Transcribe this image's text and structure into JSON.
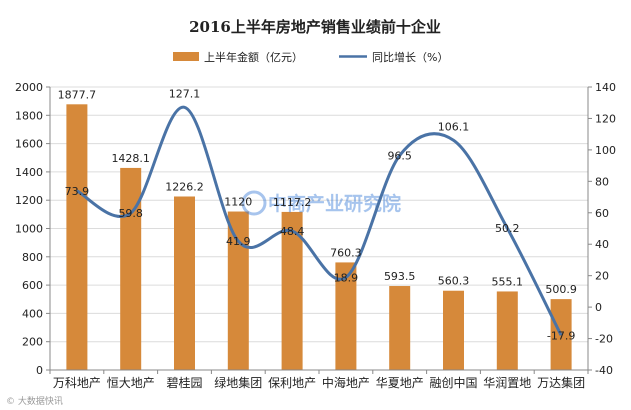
{
  "chart_data": {
    "type": "bar+line",
    "title": "2016上半年房地产销售业绩前十企业",
    "categories": [
      "万科地产",
      "恒大地产",
      "碧桂园",
      "绿地集团",
      "保利地产",
      "中海地产",
      "华夏地产",
      "融创中国",
      "华润置地",
      "万达集团"
    ],
    "series": [
      {
        "name": "上半年金额（亿元）",
        "kind": "bar",
        "axis": "left",
        "values": [
          1877.7,
          1428.1,
          1226.2,
          1120,
          1117.2,
          760.3,
          593.5,
          560.3,
          555.1,
          500.9
        ],
        "labels": [
          "1877.7",
          "1428.1",
          "1226.2",
          "1120",
          "1117.2",
          "760.3",
          "593.5",
          "560.3",
          "555.1",
          "500.9"
        ]
      },
      {
        "name": "同比增长（%）",
        "kind": "line",
        "axis": "right",
        "values": [
          73.9,
          59.8,
          127.1,
          41.9,
          48.4,
          18.9,
          96.5,
          106.1,
          50.2,
          -17.9
        ],
        "labels": [
          "73.9",
          "59.8",
          "127.1",
          "41.9",
          "48.4",
          "18.9",
          "96.5",
          "106.1",
          "50.2",
          "-17.9"
        ]
      }
    ],
    "y_left": {
      "lim": [
        0,
        2000
      ],
      "ticks": [
        "0",
        "200",
        "400",
        "600",
        "800",
        "1000",
        "1200",
        "1400",
        "1600",
        "1800",
        "2000"
      ]
    },
    "y_right": {
      "lim": [
        -40,
        140
      ],
      "ticks": [
        "-40",
        "-20",
        "0",
        "20",
        "40",
        "60",
        "80",
        "100",
        "120",
        "140"
      ]
    },
    "legend_position": "top-center",
    "grid": true,
    "colors": {
      "bar": "#d6893a",
      "line": "#4a73a6"
    }
  },
  "watermark": {
    "text": "中商产业研究院"
  },
  "footer_mark": {
    "text": "© 大数据快讯"
  }
}
